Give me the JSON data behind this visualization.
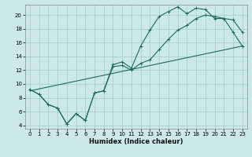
{
  "xlabel": "Humidex (Indice chaleur)",
  "bg_color": "#cce8e8",
  "grid_color": "#aacfcf",
  "line_color": "#1a6b60",
  "xlim": [
    -0.5,
    23.5
  ],
  "ylim": [
    3.5,
    21.5
  ],
  "xticks": [
    0,
    1,
    2,
    3,
    4,
    5,
    6,
    7,
    8,
    9,
    10,
    11,
    12,
    13,
    14,
    15,
    16,
    17,
    18,
    19,
    20,
    21,
    22,
    23
  ],
  "yticks": [
    4,
    6,
    8,
    10,
    12,
    14,
    16,
    18,
    20
  ],
  "series1_x": [
    0,
    1,
    2,
    3,
    4,
    5,
    6,
    7,
    8,
    9,
    10,
    11,
    12,
    13,
    14,
    15,
    16,
    17,
    18,
    19,
    20,
    21,
    22,
    23
  ],
  "series1_y": [
    9.2,
    8.5,
    7.0,
    6.5,
    4.2,
    5.7,
    4.7,
    8.7,
    9.0,
    12.8,
    13.2,
    12.3,
    15.5,
    17.8,
    19.8,
    20.5,
    21.2,
    20.2,
    21.0,
    20.8,
    19.5,
    19.5,
    19.3,
    17.5
  ],
  "series2_x": [
    0,
    1,
    2,
    3,
    4,
    5,
    6,
    7,
    8,
    9,
    10,
    11,
    12,
    13,
    14,
    15,
    16,
    17,
    18,
    19,
    20,
    21,
    22,
    23
  ],
  "series2_y": [
    9.2,
    8.5,
    7.0,
    6.5,
    4.2,
    5.7,
    4.7,
    8.7,
    9.0,
    12.5,
    12.7,
    12.0,
    13.0,
    13.5,
    15.0,
    16.5,
    17.8,
    18.5,
    19.5,
    20.0,
    19.8,
    19.5,
    17.5,
    15.5
  ],
  "series3_x": [
    0,
    23
  ],
  "series3_y": [
    9.0,
    15.5
  ]
}
